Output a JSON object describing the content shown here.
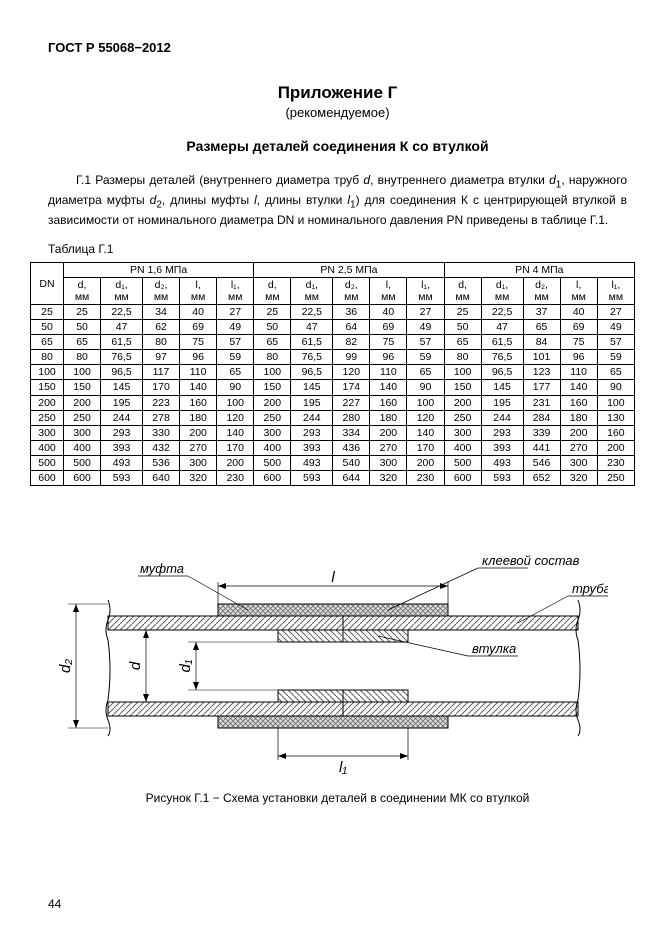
{
  "doc_code": "ГОСТ Р 55068−2012",
  "appendix_title": "Приложение Г",
  "appendix_subtitle": "(рекомендуемое)",
  "section_title": "Размеры деталей соединения К со втулкой",
  "para_prefix": "Г.1 Размеры деталей (внутреннего диаметра труб ",
  "para_d": "d",
  "para_mid1": ", внутреннего диаметра втулки ",
  "para_d1": "d",
  "para_d1_sub": "1",
  "para_mid2": ", наружного диаметра муфты ",
  "para_d2": "d",
  "para_d2_sub": "2",
  "para_mid3": ", длины муфты ",
  "para_l": "l",
  "para_mid4": ", длины втулки ",
  "para_l1": "l",
  "para_l1_sub": "1",
  "para_suffix": ") для соединения К с центрирующей втулкой в зависимости от номинального диаметра DN и номинального давления PN приведены в таблице Г.1.",
  "table_caption": "Таблица Г.1",
  "header_dn": "DN",
  "group_headers": [
    "PN 1,6 МПа",
    "PN 2,5 МПа",
    "PN 4 МПа"
  ],
  "sub_headers": {
    "d": {
      "sym": "d,",
      "unit": "мм"
    },
    "d1": {
      "sym": "d₁,",
      "unit": "мм"
    },
    "d2": {
      "sym": "d₂,",
      "unit": "мм"
    },
    "l": {
      "sym": "l,",
      "unit": "мм"
    },
    "l1": {
      "sym": "l₁,",
      "unit": "мм"
    }
  },
  "rows": [
    {
      "dn": "25",
      "g1": [
        "25",
        "22,5",
        "34",
        "40",
        "27"
      ],
      "g2": [
        "25",
        "22,5",
        "36",
        "40",
        "27"
      ],
      "g3": [
        "25",
        "22,5",
        "37",
        "40",
        "27"
      ]
    },
    {
      "dn": "50",
      "g1": [
        "50",
        "47",
        "62",
        "69",
        "49"
      ],
      "g2": [
        "50",
        "47",
        "64",
        "69",
        "49"
      ],
      "g3": [
        "50",
        "47",
        "65",
        "69",
        "49"
      ]
    },
    {
      "dn": "65",
      "g1": [
        "65",
        "61,5",
        "80",
        "75",
        "57"
      ],
      "g2": [
        "65",
        "61,5",
        "82",
        "75",
        "57"
      ],
      "g3": [
        "65",
        "61,5",
        "84",
        "75",
        "57"
      ]
    },
    {
      "dn": "80",
      "g1": [
        "80",
        "76,5",
        "97",
        "96",
        "59"
      ],
      "g2": [
        "80",
        "76,5",
        "99",
        "96",
        "59"
      ],
      "g3": [
        "80",
        "76,5",
        "101",
        "96",
        "59"
      ]
    },
    {
      "dn": "100",
      "g1": [
        "100",
        "96,5",
        "117",
        "110",
        "65"
      ],
      "g2": [
        "100",
        "96,5",
        "120",
        "110",
        "65"
      ],
      "g3": [
        "100",
        "96,5",
        "123",
        "110",
        "65"
      ]
    },
    {
      "dn": "150",
      "g1": [
        "150",
        "145",
        "170",
        "140",
        "90"
      ],
      "g2": [
        "150",
        "145",
        "174",
        "140",
        "90"
      ],
      "g3": [
        "150",
        "145",
        "177",
        "140",
        "90"
      ]
    },
    {
      "dn": "200",
      "g1": [
        "200",
        "195",
        "223",
        "160",
        "100"
      ],
      "g2": [
        "200",
        "195",
        "227",
        "160",
        "100"
      ],
      "g3": [
        "200",
        "195",
        "231",
        "160",
        "100"
      ]
    },
    {
      "dn": "250",
      "g1": [
        "250",
        "244",
        "278",
        "180",
        "120"
      ],
      "g2": [
        "250",
        "244",
        "280",
        "180",
        "120"
      ],
      "g3": [
        "250",
        "244",
        "284",
        "180",
        "130"
      ]
    },
    {
      "dn": "300",
      "g1": [
        "300",
        "293",
        "330",
        "200",
        "140"
      ],
      "g2": [
        "300",
        "293",
        "334",
        "200",
        "140"
      ],
      "g3": [
        "300",
        "293",
        "339",
        "200",
        "160"
      ]
    },
    {
      "dn": "400",
      "g1": [
        "400",
        "393",
        "432",
        "270",
        "170"
      ],
      "g2": [
        "400",
        "393",
        "436",
        "270",
        "170"
      ],
      "g3": [
        "400",
        "393",
        "441",
        "270",
        "200"
      ]
    },
    {
      "dn": "500",
      "g1": [
        "500",
        "493",
        "536",
        "300",
        "200"
      ],
      "g2": [
        "500",
        "493",
        "540",
        "300",
        "200"
      ],
      "g3": [
        "500",
        "493",
        "546",
        "300",
        "230"
      ]
    },
    {
      "dn": "600",
      "g1": [
        "600",
        "593",
        "640",
        "320",
        "230"
      ],
      "g2": [
        "600",
        "593",
        "644",
        "320",
        "230"
      ],
      "g3": [
        "600",
        "593",
        "652",
        "320",
        "250"
      ]
    }
  ],
  "figure": {
    "labels": {
      "mufta": "муфта",
      "glue": "клеевой состав",
      "truba": "труба",
      "vtulka": "втулка",
      "l": "l",
      "l1": "l₁",
      "d": "d",
      "d1": "d₁",
      "d2": "d₂"
    },
    "caption": "Рисунок Г.1 − Схема установки деталей в соединении МК со втулкой",
    "colors": {
      "stroke": "#000000",
      "hatch": "#606060",
      "fill_light": "#f0f0f0",
      "fill_hatch": "#d8d8d8",
      "bg": "#ffffff"
    },
    "font_size_label": 13,
    "font_size_label_italic": 15
  },
  "page_number": "44"
}
